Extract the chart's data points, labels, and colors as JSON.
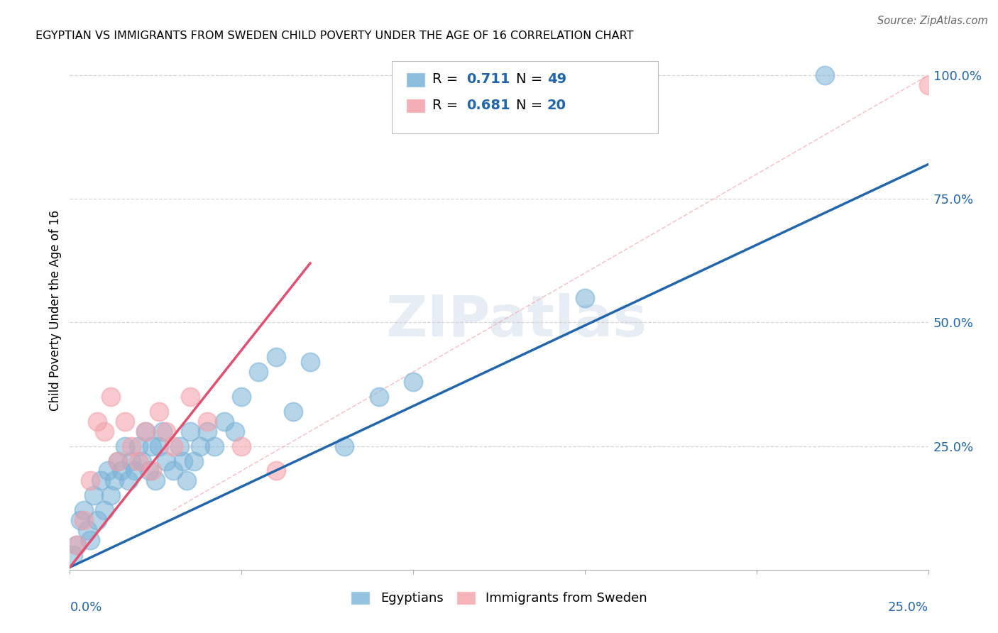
{
  "title": "EGYPTIAN VS IMMIGRANTS FROM SWEDEN CHILD POVERTY UNDER THE AGE OF 16 CORRELATION CHART",
  "source": "Source: ZipAtlas.com",
  "ylabel": "Child Poverty Under the Age of 16",
  "legend_r_blue": "0.711",
  "legend_n_blue": "49",
  "legend_r_pink": "0.681",
  "legend_n_pink": "20",
  "blue_scatter_color": "#7ab3d8",
  "pink_scatter_color": "#f4a0a8",
  "blue_line_color": "#2166ac",
  "pink_line_color": "#e05070",
  "pink_dash_color": "#f4a0a8",
  "legend_value_color": "#2166ac",
  "watermark_color": "#c8d8e8",
  "grid_color": "#cccccc",
  "xlim": [
    0.0,
    0.25
  ],
  "ylim": [
    0.0,
    1.05
  ],
  "blue_x": [
    0.001,
    0.002,
    0.003,
    0.004,
    0.005,
    0.006,
    0.007,
    0.008,
    0.009,
    0.01,
    0.011,
    0.012,
    0.013,
    0.014,
    0.015,
    0.016,
    0.017,
    0.018,
    0.019,
    0.02,
    0.021,
    0.022,
    0.023,
    0.024,
    0.025,
    0.026,
    0.027,
    0.028,
    0.03,
    0.032,
    0.033,
    0.034,
    0.035,
    0.036,
    0.038,
    0.04,
    0.042,
    0.045,
    0.048,
    0.05,
    0.055,
    0.06,
    0.065,
    0.07,
    0.08,
    0.09,
    0.1,
    0.15,
    0.22
  ],
  "blue_y": [
    0.03,
    0.05,
    0.1,
    0.12,
    0.08,
    0.06,
    0.15,
    0.1,
    0.18,
    0.12,
    0.2,
    0.15,
    0.18,
    0.22,
    0.2,
    0.25,
    0.18,
    0.22,
    0.2,
    0.25,
    0.22,
    0.28,
    0.2,
    0.25,
    0.18,
    0.25,
    0.28,
    0.22,
    0.2,
    0.25,
    0.22,
    0.18,
    0.28,
    0.22,
    0.25,
    0.28,
    0.25,
    0.3,
    0.28,
    0.35,
    0.4,
    0.43,
    0.32,
    0.42,
    0.25,
    0.35,
    0.38,
    0.55,
    1.0
  ],
  "pink_x": [
    0.002,
    0.004,
    0.006,
    0.008,
    0.01,
    0.012,
    0.014,
    0.016,
    0.018,
    0.02,
    0.022,
    0.024,
    0.026,
    0.028,
    0.03,
    0.035,
    0.04,
    0.05,
    0.06,
    0.25
  ],
  "pink_y": [
    0.05,
    0.1,
    0.18,
    0.3,
    0.28,
    0.35,
    0.22,
    0.3,
    0.25,
    0.22,
    0.28,
    0.2,
    0.32,
    0.28,
    0.25,
    0.35,
    0.3,
    0.25,
    0.2,
    0.98
  ],
  "blue_line_x0": 0.0,
  "blue_line_x1": 0.25,
  "blue_line_y0": 0.005,
  "blue_line_y1": 0.82,
  "pink_line_x0": 0.0,
  "pink_line_x1": 0.07,
  "pink_line_y0": 0.005,
  "pink_line_y1": 0.62
}
